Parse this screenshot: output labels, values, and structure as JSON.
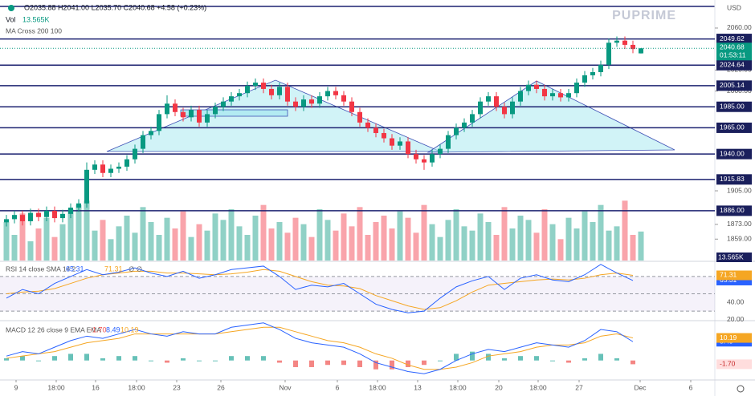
{
  "chart_data": {
    "type": "candlestick",
    "legend": "O2035.88 H2041.00 L2035.70 C2040.68 +4.58 (+0.23%)",
    "currency": "USD",
    "watermark": "PUPRIME",
    "indicator": "MA Cross 200 100",
    "countdown": "01:53:11",
    "up_color": "#089981",
    "down_color": "#f23645",
    "open": [
      1875,
      1878,
      1882,
      1876,
      1884,
      1880,
      1886,
      1879,
      1883,
      1889,
      1893,
      1925,
      1930,
      1922,
      1926,
      1928,
      1935,
      1945,
      1958,
      1962,
      1978,
      1988,
      1980,
      1975,
      1982,
      1970,
      1978,
      1985,
      1990,
      1995,
      1998,
      2005,
      2008,
      2002,
      1996,
      2004,
      1990,
      1985,
      1992,
      1988,
      1995,
      2000,
      1996,
      1990,
      1980,
      1970,
      1965,
      1960,
      1955,
      1948,
      1952,
      1940,
      1935,
      1932,
      1940,
      1945,
      1958,
      1965,
      1970,
      1978,
      1990,
      1995,
      1985,
      1978,
      1990,
      2000,
      2006,
      2002,
      1995,
      1998,
      1994,
      1998,
      2008,
      2015,
      2018,
      2025,
      2046,
      2048,
      2044,
      2035.88
    ],
    "high": [
      1882,
      1886,
      1886,
      1888,
      1888,
      1890,
      1890,
      1887,
      1893,
      1897,
      1932,
      1934,
      1934,
      1930,
      1932,
      1939,
      1949,
      1962,
      1966,
      1982,
      1996,
      1992,
      1984,
      1986,
      1986,
      1982,
      1989,
      1994,
      1999,
      2002,
      2009,
      2012,
      2012,
      2006,
      2008,
      2008,
      1994,
      1996,
      1996,
      1999,
      2004,
      2004,
      2000,
      1994,
      1984,
      1974,
      1969,
      1964,
      1959,
      1956,
      1956,
      1944,
      1939,
      1944,
      1949,
      1962,
      1969,
      1974,
      1982,
      1994,
      1999,
      1999,
      1989,
      1994,
      2004,
      2010,
      2010,
      2006,
      2002,
      2002,
      2002,
      2012,
      2019,
      2022,
      2029,
      2050,
      2052,
      2052,
      2048,
      2041
    ],
    "low": [
      1871,
      1874,
      1872,
      1872,
      1876,
      1876,
      1875,
      1875,
      1879,
      1885,
      1889,
      1921,
      1918,
      1918,
      1922,
      1924,
      1931,
      1941,
      1954,
      1958,
      1974,
      1976,
      1971,
      1971,
      1966,
      1966,
      1974,
      1981,
      1986,
      1991,
      1994,
      2001,
      1998,
      1992,
      1992,
      1986,
      1981,
      1981,
      1984,
      1984,
      1991,
      1992,
      1986,
      1976,
      1966,
      1961,
      1956,
      1951,
      1944,
      1944,
      1936,
      1931,
      1925,
      1928,
      1936,
      1941,
      1954,
      1961,
      1966,
      1974,
      1986,
      1981,
      1974,
      1974,
      1986,
      1996,
      1998,
      1991,
      1991,
      1990,
      1990,
      1994,
      2004,
      2011,
      2014,
      2021,
      2042,
      2040,
      2036,
      2035.7
    ],
    "close": [
      1878,
      1882,
      1876,
      1884,
      1880,
      1886,
      1879,
      1883,
      1889,
      1893,
      1925,
      1930,
      1922,
      1926,
      1928,
      1935,
      1945,
      1958,
      1962,
      1978,
      1988,
      1980,
      1975,
      1982,
      1970,
      1978,
      1985,
      1990,
      1995,
      1998,
      2005,
      2008,
      2002,
      1996,
      2004,
      1990,
      1985,
      1992,
      1988,
      1995,
      2000,
      1996,
      1990,
      1980,
      1970,
      1965,
      1960,
      1955,
      1948,
      1952,
      1940,
      1935,
      1932,
      1940,
      1945,
      1958,
      1965,
      1970,
      1978,
      1990,
      1995,
      1985,
      1978,
      1990,
      2000,
      2006,
      2002,
      1995,
      1998,
      1994,
      1998,
      2008,
      2015,
      2018,
      2025,
      2046,
      2048,
      2044,
      2040,
      2040.68
    ],
    "ylim": [
      1838.6,
      2086.7
    ],
    "yticks": [
      {
        "value": 2060,
        "label": "2060.00"
      },
      {
        "value": 2020,
        "label": "2020.00"
      },
      {
        "value": 2000,
        "label": "2000.00"
      },
      {
        "value": 1905,
        "label": "1905.00"
      },
      {
        "value": 1873,
        "label": "1873.00"
      },
      {
        "value": 1859,
        "label": "1859.00"
      }
    ],
    "levels": [
      {
        "value": 2049.62,
        "label": "2049.62"
      },
      {
        "value": 2024.64,
        "label": "2024.64"
      },
      {
        "value": 2005.14,
        "label": "2005.14"
      },
      {
        "value": 1985,
        "label": "1985.00"
      },
      {
        "value": 1965,
        "label": "1965.00"
      },
      {
        "value": 1940,
        "label": "1940.00"
      },
      {
        "value": 1915.83,
        "label": "1915.83"
      },
      {
        "value": 1886,
        "label": "1886.00"
      }
    ],
    "xlim": [
      -0.8,
      88.2
    ],
    "xticks": [
      {
        "value": 1.2,
        "label": "9"
      },
      {
        "value": 6.2,
        "label": "18:00"
      },
      {
        "value": 11.1,
        "label": "16"
      },
      {
        "value": 16.2,
        "label": "18:00"
      },
      {
        "value": 21.2,
        "label": "23"
      },
      {
        "value": 26.7,
        "label": "26"
      },
      {
        "value": 34.7,
        "label": "Nov"
      },
      {
        "value": 41.2,
        "label": "6"
      },
      {
        "value": 46.2,
        "label": "18:00"
      },
      {
        "value": 51.2,
        "label": "13"
      },
      {
        "value": 56.2,
        "label": "18:00"
      },
      {
        "value": 61.3,
        "label": "20"
      },
      {
        "value": 66.2,
        "label": "18:00"
      },
      {
        "value": 71.3,
        "label": "27"
      },
      {
        "value": 78.9,
        "label": "Dec"
      },
      {
        "value": 85.2,
        "label": "6"
      }
    ],
    "volume": {
      "title": "Vol",
      "label": "13.565K",
      "ylim": [
        0,
        30
      ],
      "values": [
        18,
        12,
        22,
        9,
        15,
        20,
        11,
        17,
        24,
        26,
        28,
        14,
        19,
        10,
        16,
        21,
        13,
        25,
        18,
        12,
        20,
        15,
        23,
        11,
        17,
        14,
        22,
        19,
        24,
        16,
        12,
        21,
        26,
        15,
        18,
        13,
        20,
        17,
        11,
        24,
        19,
        14,
        22,
        16,
        25,
        12,
        18,
        21,
        15,
        23,
        20,
        13,
        26,
        17,
        11,
        19,
        24,
        16,
        14,
        22,
        18,
        12,
        25,
        15,
        21,
        19,
        13,
        24,
        17,
        10,
        20,
        15,
        23,
        18,
        26,
        14,
        16,
        28,
        12,
        13.565
      ]
    },
    "rsi": {
      "title": "RSI 14 close SMA 14 2",
      "flags": "∅ ∅",
      "x": [
        0,
        2,
        4,
        6,
        8,
        10,
        12,
        14,
        16,
        18,
        20,
        22,
        24,
        26,
        28,
        30,
        32,
        34,
        36,
        38,
        40,
        42,
        44,
        46,
        48,
        50,
        52,
        54,
        56,
        58,
        60,
        62,
        64,
        66,
        68,
        70,
        72,
        74,
        76,
        78
      ],
      "ylim": [
        19,
        87.5
      ],
      "yticks": [
        {
          "value": 40,
          "label": "40.00"
        },
        {
          "value": 20,
          "label": "20.00"
        }
      ],
      "bands": [
        70,
        50,
        30
      ],
      "series": [
        {
          "color": "#2962ff",
          "values": [
            45,
            55,
            50,
            62,
            70,
            78,
            72,
            75,
            80,
            74,
            70,
            76,
            68,
            72,
            78,
            80,
            82,
            70,
            55,
            60,
            58,
            62,
            50,
            38,
            32,
            28,
            30,
            45,
            58,
            65,
            70,
            55,
            68,
            72,
            66,
            64,
            72,
            84,
            74,
            65.31
          ]
        },
        {
          "color": "#f5a623",
          "values": [
            50,
            52,
            53,
            56,
            62,
            68,
            72,
            74,
            76,
            76,
            74,
            74,
            73,
            72,
            73,
            75,
            78,
            76,
            70,
            64,
            60,
            59,
            56,
            48,
            42,
            36,
            32,
            34,
            42,
            52,
            60,
            62,
            64,
            66,
            67,
            66,
            68,
            72,
            74,
            71.31
          ]
        }
      ]
    },
    "macd": {
      "title": "MACD 12 26 close 9 EMA EMA",
      "ylim": [
        -8.8,
        18
      ],
      "histogram": {
        "up_color": "#26a69a",
        "down_color": "#ef5350",
        "last_label": "-1.70",
        "values": [
          1,
          2,
          0,
          2,
          3,
          3,
          1,
          2,
          2,
          0,
          -1,
          1,
          0,
          0,
          2,
          2,
          2,
          -1,
          -3,
          -3,
          -2,
          -2,
          -3,
          -4,
          -4,
          -3,
          -2,
          0,
          3,
          4,
          3,
          1,
          2,
          2,
          0,
          -1,
          1,
          3,
          1,
          -1.7
        ]
      },
      "series": [
        {
          "color": "#2962ff",
          "values": [
            2,
            4,
            3,
            6,
            9,
            11,
            10,
            12,
            14,
            12,
            11,
            13,
            12,
            12,
            15,
            16,
            17,
            14,
            10,
            8,
            7,
            6,
            3,
            -1,
            -3,
            -5,
            -6,
            -4,
            0,
            3,
            5,
            4,
            6,
            8,
            7,
            6,
            9,
            14,
            13,
            8.49
          ]
        },
        {
          "color": "#f5a623",
          "values": [
            1,
            2,
            3,
            4,
            6,
            8,
            9,
            10,
            12,
            12,
            12,
            12,
            12,
            12,
            13,
            14,
            15,
            15,
            13,
            11,
            9,
            8,
            6,
            3,
            1,
            -2,
            -4,
            -4,
            -3,
            -1,
            2,
            3,
            4,
            6,
            7,
            7,
            8,
            11,
            12,
            10.19
          ]
        }
      ]
    }
  }
}
